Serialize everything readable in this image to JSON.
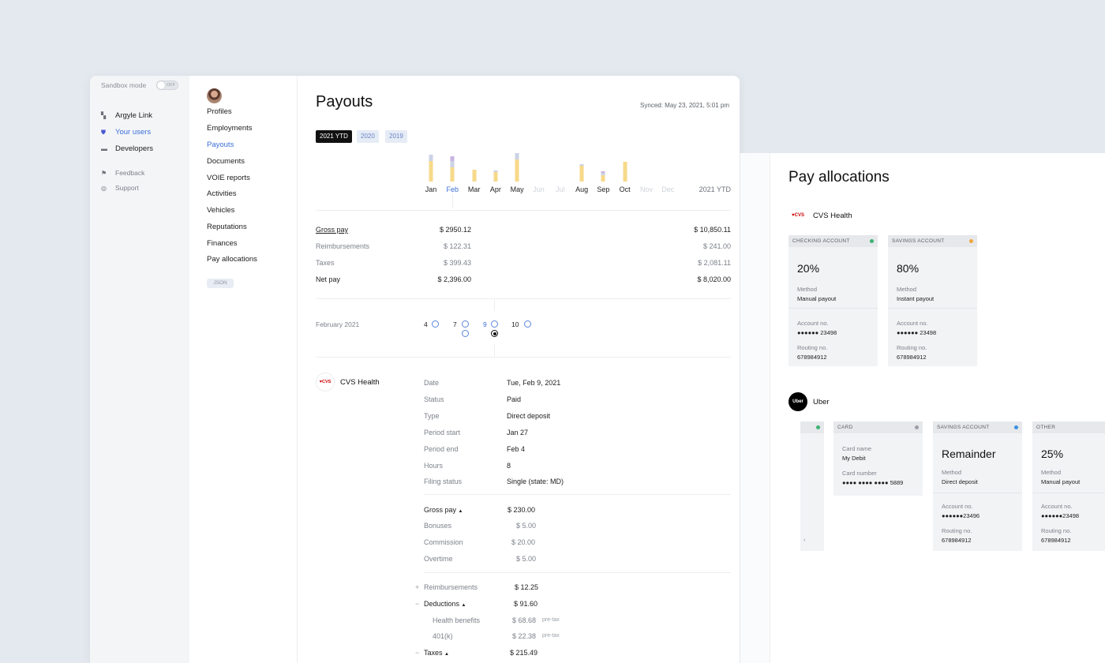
{
  "sidebar": {
    "sandbox_label": "Sandbox mode",
    "sandbox_state": "OFF",
    "items": [
      {
        "label": "Argyle Link",
        "icon": "link-icon"
      },
      {
        "label": "Your users",
        "icon": "shield-icon"
      },
      {
        "label": "Developers",
        "icon": "code-icon"
      }
    ],
    "footer": [
      {
        "label": "Feedback",
        "icon": "flag-icon"
      },
      {
        "label": "Support",
        "icon": "lifebuoy-icon"
      }
    ]
  },
  "subnav": {
    "items": [
      "Profiles",
      "Employments",
      "Payouts",
      "Documents",
      "VOIE reports",
      "Activities",
      "Vehicles",
      "Reputations",
      "Finances",
      "Pay allocations"
    ],
    "active": "Payouts",
    "json_button": "JSON"
  },
  "payouts": {
    "title": "Payouts",
    "synced": "Synced: May 23, 2021, 5:01 pm",
    "year_tabs": [
      "2021 YTD",
      "2020",
      "2019"
    ],
    "active_year": "2021 YTD",
    "chart_ytd_label": "2021 YTD",
    "chart_data": {
      "type": "bar",
      "categories": [
        "Jan",
        "Feb",
        "Mar",
        "Apr",
        "May",
        "Jun",
        "Jul",
        "Aug",
        "Sep",
        "Oct",
        "Nov",
        "Dec"
      ],
      "series": [
        {
          "values": [
            26,
            18,
            15,
            12,
            28,
            0,
            0,
            20,
            8,
            25,
            0,
            0
          ],
          "color": "#f7d98a"
        },
        {
          "values": [
            8,
            8,
            0,
            2,
            8,
            0,
            0,
            2,
            3,
            0,
            0,
            0
          ],
          "color": "#cbd2e6"
        },
        {
          "values": [
            0,
            6,
            0,
            0,
            0,
            0,
            0,
            0,
            2,
            0,
            0,
            0
          ],
          "color": "#c7b3e0"
        }
      ],
      "disabled": [
        "Jun",
        "Jul",
        "Nov",
        "Dec"
      ],
      "selected": "Feb"
    },
    "summary": [
      {
        "label": "Gross pay",
        "month": "$ 2950.12",
        "ytd": "$ 10,850.11",
        "dark": true
      },
      {
        "label": "Reimbursements",
        "month": "$ 122.31",
        "ytd": "$ 241.00",
        "dark": false
      },
      {
        "label": "Taxes",
        "month": "$ 399.43",
        "ytd": "$ 2,081.11",
        "dark": false
      },
      {
        "label": "Net pay",
        "month": "$ 2,396.00",
        "ytd": "$ 8,020.00",
        "dark": true
      }
    ],
    "period": {
      "month_label": "February 2021",
      "days": [
        "4",
        "7",
        "9",
        "10"
      ],
      "selected_day": "9"
    },
    "detail": {
      "employer": "CVS Health",
      "logo_text": "♥CVS",
      "fields": [
        {
          "label": "Date",
          "value": "Tue, Feb 9, 2021"
        },
        {
          "label": "Status",
          "value": "Paid"
        },
        {
          "label": "Type",
          "value": "Direct deposit"
        },
        {
          "label": "Period start",
          "value": "Jan 27"
        },
        {
          "label": "Period end",
          "value": "Feb 4"
        },
        {
          "label": "Hours",
          "value": "8"
        },
        {
          "label": "Filing status",
          "value": "Single (state: MD)"
        }
      ],
      "gross": {
        "label": "Gross pay",
        "value": "$ 230.00"
      },
      "gross_items": [
        {
          "label": "Bonuses",
          "value": "$ 5.00"
        },
        {
          "label": "Commission",
          "value": "$ 20.00"
        },
        {
          "label": "Overtime",
          "value": "$ 5.00"
        }
      ],
      "reimbursements": {
        "sign": "+",
        "label": "Reimbursements",
        "value": "$ 12.25"
      },
      "deductions": {
        "sign": "−",
        "label": "Deductions",
        "value": "$ 91.60"
      },
      "deduction_items": [
        {
          "label": "Health benefits",
          "value": "$ 68.68",
          "tag": "pre-tax"
        },
        {
          "label": "401(k)",
          "value": "$ 22.38",
          "tag": "pre-tax"
        }
      ],
      "taxes": {
        "sign": "−",
        "label": "Taxes",
        "value": "$ 215.49"
      }
    }
  },
  "allocations": {
    "title": "Pay allocations",
    "groups": [
      {
        "employer": "CVS Health",
        "logo_text": "♥CVS",
        "cards": [
          {
            "header": "CHECKING ACCOUNT",
            "dot": "#3bb273",
            "big": "20%",
            "method_label": "Method",
            "method": "Manual payout",
            "acct_label": "Account no.",
            "acct": "●●●●●● 23498",
            "routing_label": "Routing no.",
            "routing": "678984912"
          },
          {
            "header": "SAVINGS ACCOUNT",
            "dot": "#f0a53b",
            "big": "80%",
            "method_label": "Method",
            "method": "Instant payout",
            "acct_label": "Account no.",
            "acct": "●●●●●● 23498",
            "routing_label": "Routing no.",
            "routing": "678984912"
          }
        ]
      },
      {
        "employer": "Uber",
        "logo_text": "Uber",
        "cards": [
          {
            "header": "CARD",
            "dot": "#9aa0a8",
            "card_label": "Card name",
            "card_name": "My Debit",
            "cnum_label": "Card number",
            "cnum": "●●●● ●●●● ●●●● 5889"
          },
          {
            "header": "SAVINGS ACCOUNT",
            "dot": "#3b8fe0",
            "big": "Remainder",
            "method_label": "Method",
            "method": "Direct deposit",
            "acct_label": "Account no.",
            "acct": "●●●●●●23496",
            "routing_label": "Routing no.",
            "routing": "678984912"
          },
          {
            "header": "OTHER",
            "big": "25%",
            "method_label": "Method",
            "method": "Manual payout",
            "acct_label": "Account no.",
            "acct": "●●●●●●23498",
            "routing_label": "Routing no.",
            "routing": "678984912"
          }
        ]
      }
    ]
  }
}
